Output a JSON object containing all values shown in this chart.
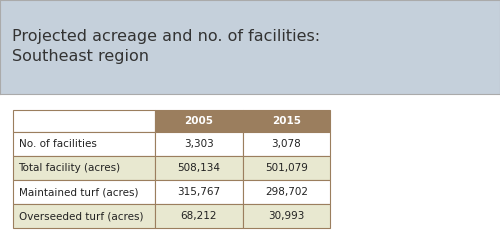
{
  "title": "Projected acreage and no. of facilities:\nSoutheast region",
  "title_bg_color": "#c5d0db",
  "title_text_color": "#333333",
  "header_bg_color": "#9b7e5e",
  "header_text_color": "#ffffff",
  "row_bg_colors": [
    "#ffffff",
    "#e8e8d0",
    "#ffffff",
    "#e8e8d0"
  ],
  "col_headers": [
    "2005",
    "2015"
  ],
  "rows": [
    [
      "No. of facilities",
      "3,303",
      "3,078"
    ],
    [
      "Total facility (acres)",
      "508,134",
      "501,079"
    ],
    [
      "Maintained turf (acres)",
      "315,767",
      "298,702"
    ],
    [
      "Overseeded turf (acres)",
      "68,212",
      "30,993"
    ]
  ],
  "border_color": "#9b7e5e",
  "font_size_title": 11.5,
  "font_size_table": 7.5,
  "fig_width": 5.0,
  "fig_height": 2.34,
  "dpi": 100
}
